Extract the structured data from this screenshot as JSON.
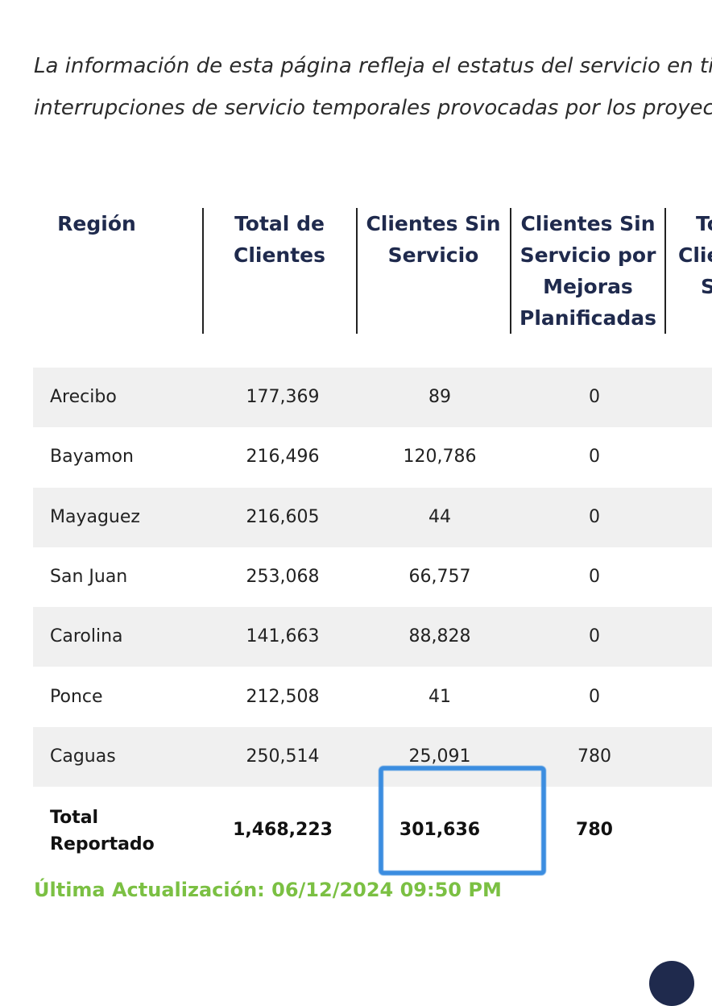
{
  "intro": {
    "line1": "La información de esta página refleja el estatus del servicio en tiempo",
    "line2": "interrupciones de servicio temporales provocadas por los proyectos"
  },
  "table": {
    "headers": [
      {
        "lines": [
          "Región"
        ]
      },
      {
        "lines": [
          "Total de",
          "Clientes"
        ]
      },
      {
        "lines": [
          "Clientes Sin",
          "Servicio"
        ]
      },
      {
        "lines": [
          "Clientes Sin",
          "Servicio por",
          "Mejoras",
          "Planificadas"
        ]
      },
      {
        "lines": [
          "To",
          "Clie",
          "S"
        ]
      }
    ],
    "rows": [
      {
        "region": "Arecibo",
        "total": "177,369",
        "sin_servicio": "89",
        "mejoras": "0"
      },
      {
        "region": "Bayamon",
        "total": "216,496",
        "sin_servicio": "120,786",
        "mejoras": "0"
      },
      {
        "region": "Mayaguez",
        "total": "216,605",
        "sin_servicio": "44",
        "mejoras": "0"
      },
      {
        "region": "San Juan",
        "total": "253,068",
        "sin_servicio": "66,757",
        "mejoras": "0"
      },
      {
        "region": "Carolina",
        "total": "141,663",
        "sin_servicio": "88,828",
        "mejoras": "0"
      },
      {
        "region": "Ponce",
        "total": "212,508",
        "sin_servicio": "41",
        "mejoras": "0"
      },
      {
        "region": "Caguas",
        "total": "250,514",
        "sin_servicio": "25,091",
        "mejoras": "780"
      }
    ],
    "total_row": {
      "label_line1": "Total",
      "label_line2": "Reportado",
      "total": "1,468,223",
      "sin_servicio": "301,636",
      "mejoras": "780"
    }
  },
  "updated": "Última Actualización: 06/12/2024 09:50 PM",
  "colors": {
    "header_text": "#1f2a4d",
    "updated_text": "#7bc043",
    "highlight_box": "#3b8de0",
    "row_shade": "#f0f0f0"
  }
}
